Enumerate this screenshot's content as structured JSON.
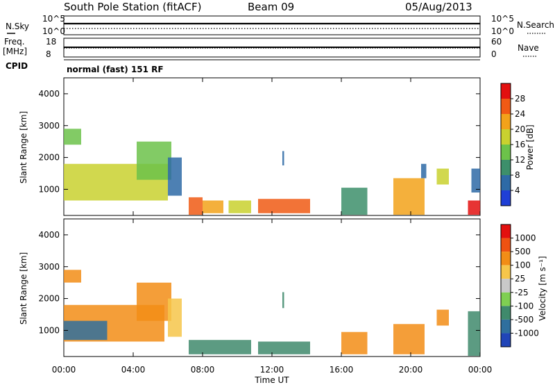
{
  "header": {
    "station": "South Pole Station (fitACF)",
    "beam": "Beam 09",
    "date": "05/Aug/2013"
  },
  "side_labels": {
    "nsky": "N.Sky",
    "freq_top": "Freq.",
    "freq_unit": "[MHz]",
    "cpid": "CPID",
    "nsearch": "N.Search",
    "nave": "Nave",
    "nsky_top": "10^5",
    "nsky_bottom": "10^0",
    "freq_top_tick": "18",
    "freq_bottom_tick": "8",
    "nsearch_top": "10^5",
    "nsearch_bottom": "10^0",
    "nave_top": "60",
    "nave_bottom": "0"
  },
  "cpid_text": "normal (fast) 151 RF",
  "chart_data": [
    {
      "type": "line",
      "panel": "noise",
      "series": [
        {
          "name": "N.Sky",
          "style": "solid",
          "value_level": 0.6
        },
        {
          "name": "N.Search",
          "style": "dotted",
          "value_level": 0.3
        }
      ]
    },
    {
      "type": "line",
      "panel": "frequency",
      "series": [
        {
          "name": "Freq.",
          "style": "solid",
          "value": 12.5
        },
        {
          "name": "Nave",
          "style": "dotted",
          "value": 30
        }
      ]
    },
    {
      "type": "heatmap",
      "panel": "power",
      "ylabel": "Slant Range [km]",
      "yticks": [
        "1000",
        "2000",
        "3000",
        "4000"
      ],
      "ylim": [
        180,
        4500
      ],
      "xlim": [
        0,
        24
      ],
      "colorbar_label": "Power [dB]",
      "colorbar_ticks": [
        "4",
        "8",
        "12",
        "16",
        "20",
        "24",
        "28"
      ],
      "colors": [
        "#1f3fd6",
        "#2e6aa6",
        "#3d8f6b",
        "#6cc24a",
        "#c9d12f",
        "#f2a21a",
        "#f05a14",
        "#e3100f"
      ],
      "blobs": [
        {
          "t0": 0.0,
          "t1": 6.0,
          "r0": 650,
          "r1": 1800,
          "lvl": 4
        },
        {
          "t0": 0.0,
          "t1": 1.0,
          "r0": 2400,
          "r1": 2900,
          "lvl": 3
        },
        {
          "t0": 4.2,
          "t1": 6.2,
          "r0": 1300,
          "r1": 2500,
          "lvl": 3
        },
        {
          "t0": 6.0,
          "t1": 6.8,
          "r0": 800,
          "r1": 2000,
          "lvl": 1
        },
        {
          "t0": 7.2,
          "t1": 8.0,
          "r0": 200,
          "r1": 750,
          "lvl": 6
        },
        {
          "t0": 8.0,
          "t1": 9.2,
          "r0": 250,
          "r1": 650,
          "lvl": 5
        },
        {
          "t0": 9.5,
          "t1": 10.8,
          "r0": 250,
          "r1": 650,
          "lvl": 4
        },
        {
          "t0": 11.2,
          "t1": 14.2,
          "r0": 250,
          "r1": 700,
          "lvl": 6
        },
        {
          "t0": 12.6,
          "t1": 12.7,
          "r0": 1750,
          "r1": 2200,
          "lvl": 1
        },
        {
          "t0": 16.0,
          "t1": 17.5,
          "r0": 200,
          "r1": 1050,
          "lvl": 2
        },
        {
          "t0": 19.0,
          "t1": 20.8,
          "r0": 200,
          "r1": 1350,
          "lvl": 5
        },
        {
          "t0": 20.6,
          "t1": 20.9,
          "r0": 1350,
          "r1": 1800,
          "lvl": 1
        },
        {
          "t0": 21.5,
          "t1": 22.2,
          "r0": 1150,
          "r1": 1650,
          "lvl": 4
        },
        {
          "t0": 23.3,
          "t1": 24.0,
          "r0": 200,
          "r1": 650,
          "lvl": 7
        },
        {
          "t0": 23.5,
          "t1": 24.0,
          "r0": 900,
          "r1": 1650,
          "lvl": 1
        }
      ]
    },
    {
      "type": "heatmap",
      "panel": "velocity",
      "ylabel": "Slant Range [km]",
      "yticks": [
        "1000",
        "2000",
        "3000",
        "4000"
      ],
      "ylim": [
        180,
        4500
      ],
      "xlim": [
        0,
        24
      ],
      "xlabel": "Time UT",
      "xticks": [
        "00:00",
        "04:00",
        "08:00",
        "12:00",
        "16:00",
        "20:00",
        "00:00"
      ],
      "colorbar_label": "Velocity [m s⁻¹]",
      "colorbar_ticks": [
        "1000",
        "500",
        "100",
        "25",
        "-25",
        "-100",
        "-500",
        "-1000"
      ],
      "colors": [
        "#2145b8",
        "#2f6f9e",
        "#3f8a6c",
        "#7fcf52",
        "#c8c8c8",
        "#f6c64a",
        "#f28d16",
        "#ef5212",
        "#e3100f"
      ],
      "blobs": [
        {
          "t0": 0.0,
          "t1": 1.0,
          "r0": 2500,
          "r1": 2900,
          "lvl": 6
        },
        {
          "t0": 0.0,
          "t1": 5.8,
          "r0": 650,
          "r1": 1800,
          "lvl": 6
        },
        {
          "t0": 0.0,
          "t1": 2.5,
          "r0": 700,
          "r1": 1300,
          "lvl": 1
        },
        {
          "t0": 4.2,
          "t1": 6.2,
          "r0": 1300,
          "r1": 2500,
          "lvl": 6
        },
        {
          "t0": 6.0,
          "t1": 6.8,
          "r0": 800,
          "r1": 2000,
          "lvl": 5
        },
        {
          "t0": 7.2,
          "t1": 10.8,
          "r0": 250,
          "r1": 700,
          "lvl": 2
        },
        {
          "t0": 11.2,
          "t1": 14.2,
          "r0": 250,
          "r1": 650,
          "lvl": 2
        },
        {
          "t0": 12.6,
          "t1": 12.7,
          "r0": 1700,
          "r1": 2200,
          "lvl": 2
        },
        {
          "t0": 16.0,
          "t1": 17.5,
          "r0": 250,
          "r1": 950,
          "lvl": 6
        },
        {
          "t0": 19.0,
          "t1": 20.8,
          "r0": 250,
          "r1": 1200,
          "lvl": 6
        },
        {
          "t0": 21.5,
          "t1": 22.2,
          "r0": 1150,
          "r1": 1650,
          "lvl": 6
        },
        {
          "t0": 23.3,
          "t1": 24.0,
          "r0": 200,
          "r1": 1600,
          "lvl": 2
        }
      ]
    }
  ]
}
